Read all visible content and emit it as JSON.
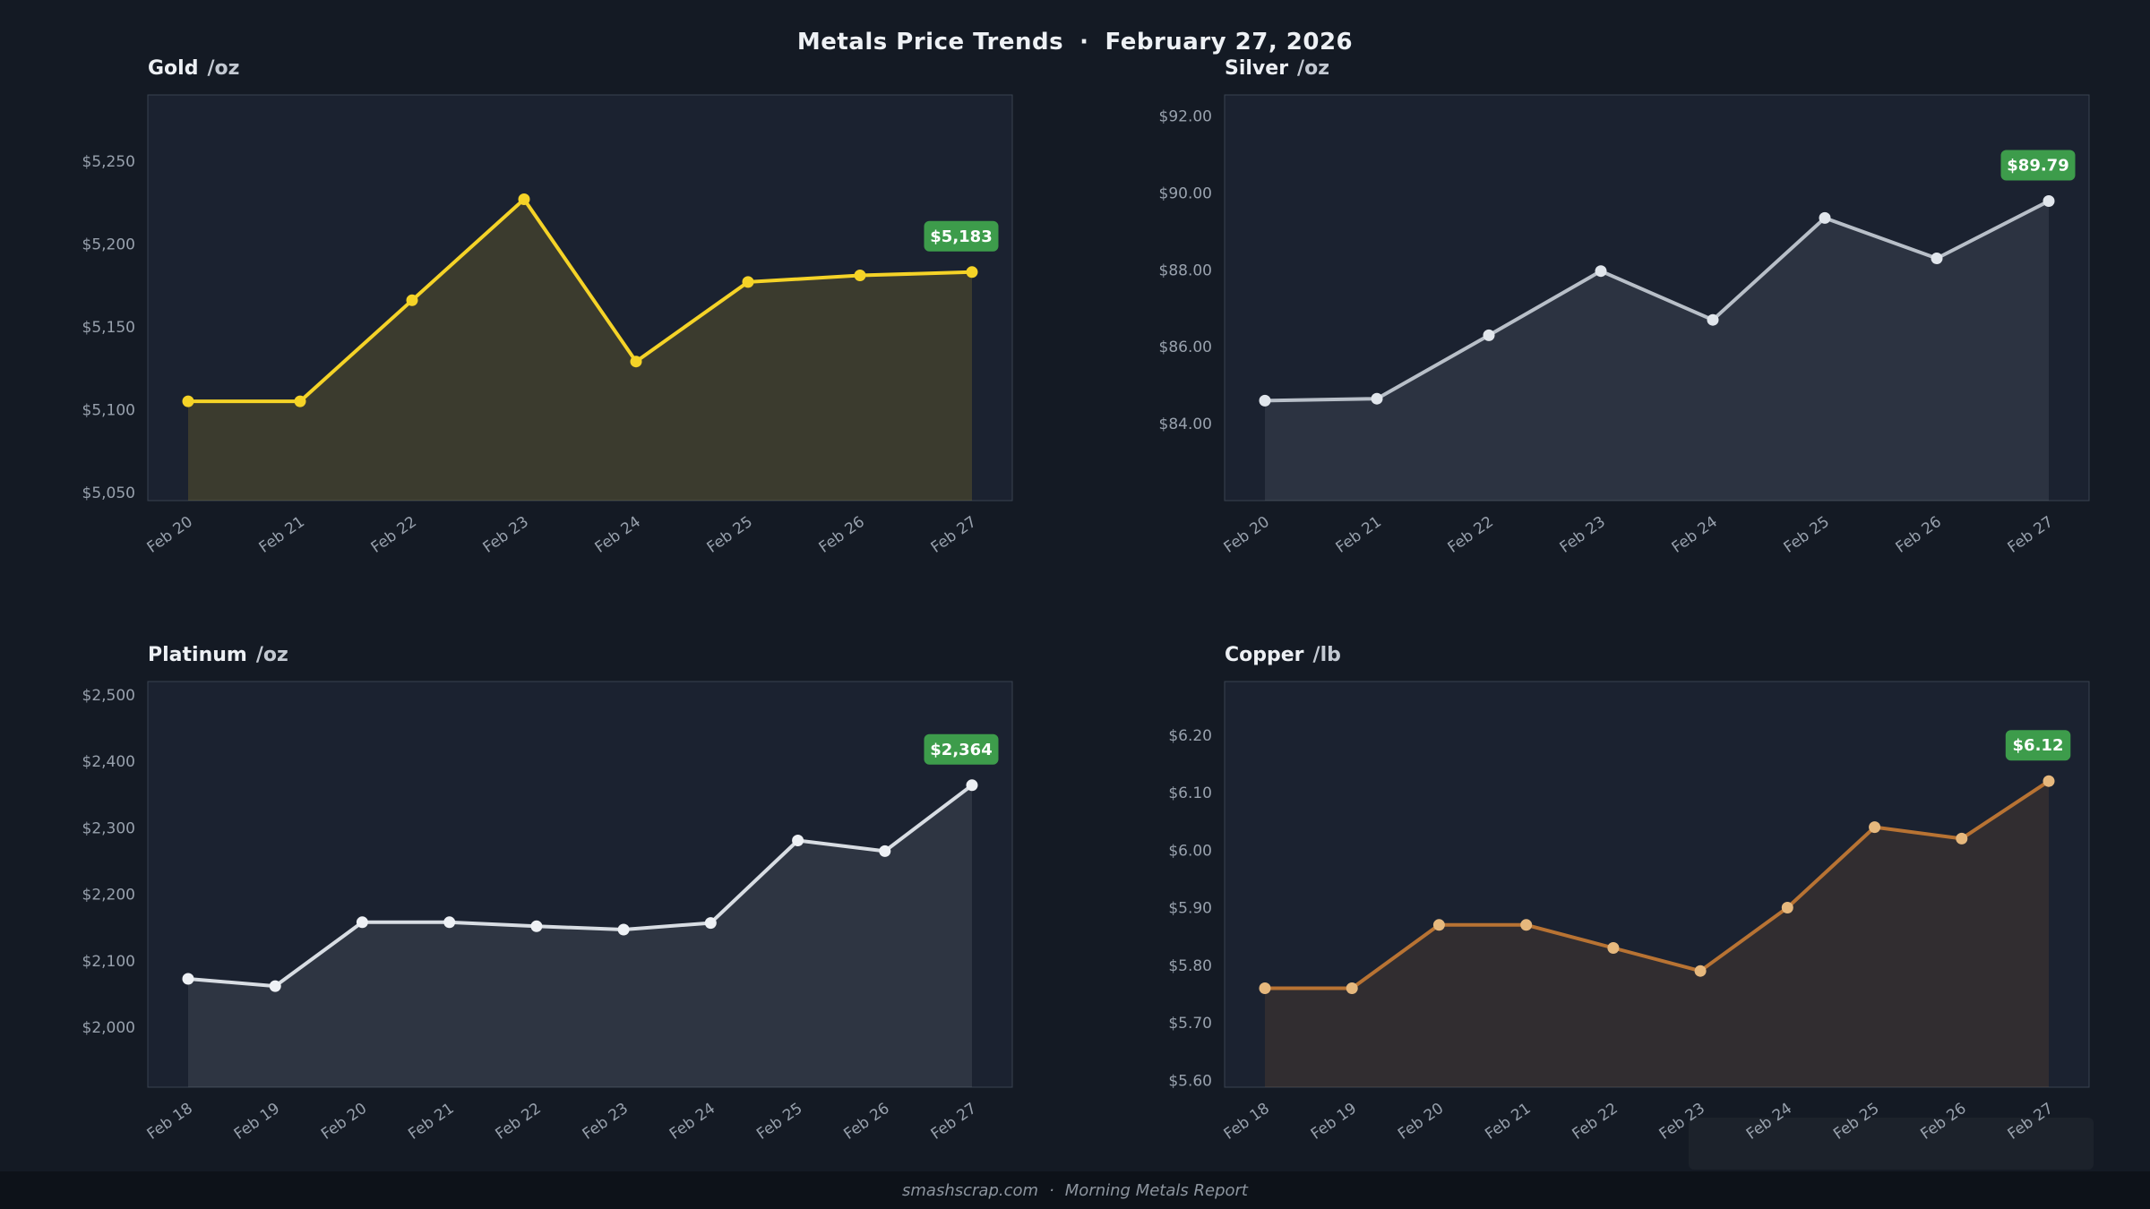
{
  "header": {
    "title": "Metals Price Trends",
    "separator": "·",
    "date": "February 27, 2026"
  },
  "footer": {
    "site": "smashscrap.com",
    "separator": "·",
    "report": "Morning Metals Report"
  },
  "colors": {
    "page_bg": "#141a24",
    "panel_bg": "#1b2230",
    "panel_border": "#39434f",
    "tick_text": "#98a1ad",
    "badge_bg": "#3d9c4b",
    "badge_text": "#ffffff",
    "footer_bg": "#0d1219",
    "footer_text": "#8d959f"
  },
  "chart_data": [
    {
      "type": "line",
      "title": "Gold",
      "unit": "/oz",
      "line_color": "#f5d327",
      "marker_color": "#f5d327",
      "fill_color": "rgba(245,211,39,0.15)",
      "last_value_label": "$5,183",
      "x": [
        "Feb 20",
        "Feb 21",
        "Feb 22",
        "Feb 23",
        "Feb 24",
        "Feb 25",
        "Feb 26",
        "Feb 27"
      ],
      "values": [
        5105,
        5105,
        5166,
        5227,
        5129,
        5177,
        5181,
        5183
      ],
      "ylim": [
        5045,
        5290
      ],
      "yticks": [
        5050,
        5100,
        5150,
        5200,
        5250
      ],
      "ytick_labels": [
        "$5,050",
        "$5,100",
        "$5,150",
        "$5,200",
        "$5,250"
      ],
      "grid": false,
      "legend": "none"
    },
    {
      "type": "line",
      "title": "Silver",
      "unit": "/oz",
      "line_color": "#b8bfc8",
      "marker_color": "#e1e6ec",
      "fill_color": "rgba(200,208,220,0.10)",
      "last_value_label": "$89.79",
      "x": [
        "Feb 20",
        "Feb 21",
        "Feb 22",
        "Feb 23",
        "Feb 24",
        "Feb 25",
        "Feb 26",
        "Feb 27"
      ],
      "values": [
        84.6,
        84.65,
        86.3,
        87.97,
        86.7,
        89.35,
        88.3,
        89.79
      ],
      "ylim": [
        82.0,
        92.55
      ],
      "yticks": [
        84,
        86,
        88,
        90,
        92
      ],
      "ytick_labels": [
        "$84.00",
        "$86.00",
        "$88.00",
        "$90.00",
        "$92.00"
      ],
      "grid": false,
      "legend": "none"
    },
    {
      "type": "line",
      "title": "Platinum",
      "unit": "/oz",
      "line_color": "#d8dde3",
      "marker_color": "#eef1f5",
      "fill_color": "rgba(216,221,227,0.10)",
      "last_value_label": "$2,364",
      "x": [
        "Feb 18",
        "Feb 19",
        "Feb 20",
        "Feb 21",
        "Feb 22",
        "Feb 23",
        "Feb 24",
        "Feb 25",
        "Feb 26",
        "Feb 27"
      ],
      "values": [
        2073,
        2062,
        2158,
        2158,
        2152,
        2147,
        2157,
        2281,
        2265,
        2364
      ],
      "ylim": [
        1910,
        2520
      ],
      "yticks": [
        2000,
        2100,
        2200,
        2300,
        2400,
        2500
      ],
      "ytick_labels": [
        "$2,000",
        "$2,100",
        "$2,200",
        "$2,300",
        "$2,400",
        "$2,500"
      ],
      "grid": false,
      "legend": "none"
    },
    {
      "type": "line",
      "title": "Copper",
      "unit": "/lb",
      "line_color": "#b87333",
      "marker_color": "#e6b87d",
      "fill_color": "rgba(184,115,51,0.14)",
      "last_value_label": "$6.12",
      "x": [
        "Feb 18",
        "Feb 19",
        "Feb 20",
        "Feb 21",
        "Feb 22",
        "Feb 23",
        "Feb 24",
        "Feb 25",
        "Feb 26",
        "Feb 27"
      ],
      "values": [
        5.76,
        5.76,
        5.87,
        5.87,
        5.83,
        5.79,
        5.9,
        6.04,
        6.02,
        6.12
      ],
      "ylim": [
        5.588,
        6.293
      ],
      "yticks": [
        5.6,
        5.7,
        5.8,
        5.9,
        6.0,
        6.1,
        6.2
      ],
      "ytick_labels": [
        "$5.60",
        "$5.70",
        "$5.80",
        "$5.90",
        "$6.00",
        "$6.10",
        "$6.20"
      ],
      "grid": false,
      "legend": "none"
    }
  ]
}
